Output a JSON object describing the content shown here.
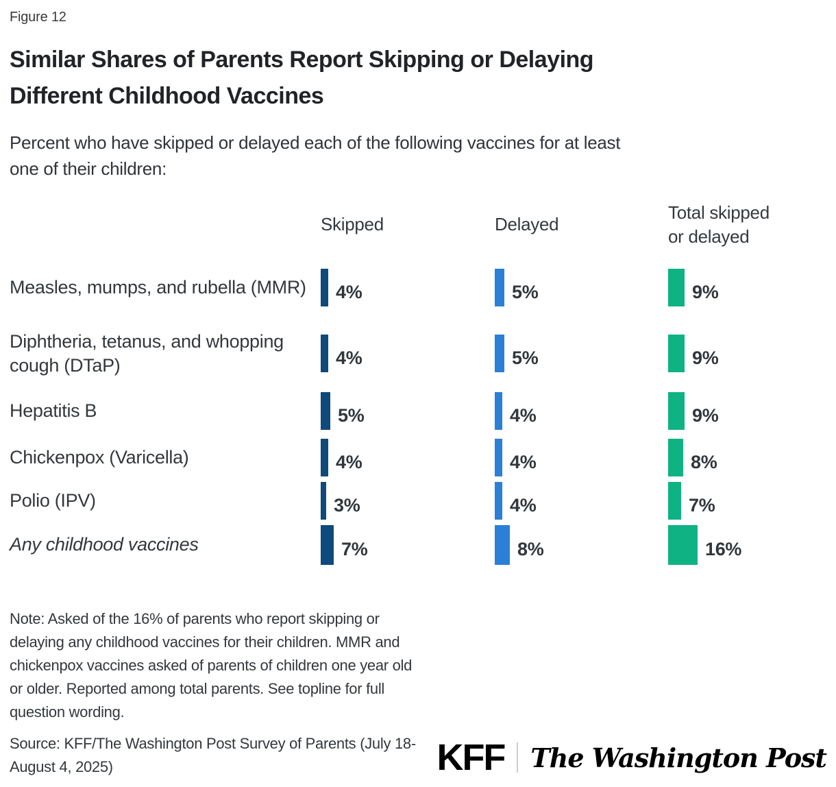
{
  "figure_label": "Figure 12",
  "title": "Similar Shares of Parents Report Skipping or Delaying\nDifferent Childhood Vaccines",
  "subtitle": "Percent who have skipped or delayed each of the following vaccines for at least\none of their children:",
  "columns": {
    "skipped": "Skipped",
    "delayed": "Delayed",
    "total": "Total skipped\nor delayed"
  },
  "colors": {
    "skipped": "#0E4A7B",
    "delayed": "#2B7FD6",
    "total": "#0FB283"
  },
  "chart_data": {
    "type": "bar",
    "orientation": "horizontal",
    "title": "Similar Shares of Parents Report Skipping or Delaying Different Childhood Vaccines",
    "subtitle": "Percent who have skipped or delayed each of the following vaccines for at least one of their children:",
    "unit": "%",
    "categories": [
      "Measles, mumps, and rubella (MMR)",
      "Diphtheria, tetanus, and whopping cough (DTaP)",
      "Hepatitis B",
      "Chickenpox (Varicella)",
      "Polio (IPV)",
      "Any childhood vaccines"
    ],
    "series": [
      {
        "name": "Skipped",
        "color": "#0E4A7B",
        "values": [
          4,
          4,
          5,
          4,
          3,
          7
        ]
      },
      {
        "name": "Delayed",
        "color": "#2B7FD6",
        "values": [
          5,
          5,
          4,
          4,
          4,
          8
        ]
      },
      {
        "name": "Total skipped or delayed",
        "color": "#0FB283",
        "values": [
          9,
          9,
          9,
          8,
          7,
          16
        ]
      }
    ],
    "data_labels_shown": true,
    "legend_position": "column-headers",
    "axes_shown": false
  },
  "rows": [
    {
      "label": "Measles, mumps, and rubella\n(MMR)",
      "skipped": "4%",
      "delayed": "5%",
      "total": "9%"
    },
    {
      "label": "Diphtheria, tetanus, and\nwhopping cough (DTaP)",
      "skipped": "4%",
      "delayed": "5%",
      "total": "9%"
    },
    {
      "label": "Hepatitis B",
      "skipped": "5%",
      "delayed": "4%",
      "total": "9%"
    },
    {
      "label": "Chickenpox (Varicella)",
      "skipped": "4%",
      "delayed": "4%",
      "total": "8%"
    },
    {
      "label": "Polio (IPV)",
      "skipped": "3%",
      "delayed": "4%",
      "total": "7%"
    },
    {
      "label": "Any childhood vaccines",
      "skipped": "7%",
      "delayed": "8%",
      "total": "16%"
    }
  ],
  "note": "Note: Asked of the 16% of parents who report skipping or\ndelaying any childhood vaccines for their children. MMR and\nchickenpox vaccines asked of parents of children one year old\nor older. Reported among total parents. See topline for full\nquestion wording.",
  "source": "Source: KFF/The Washington Post Survey of Parents (July 18-\nAugust 4, 2025)",
  "logos": {
    "kff": "KFF",
    "wapo": "The Washington Post"
  }
}
